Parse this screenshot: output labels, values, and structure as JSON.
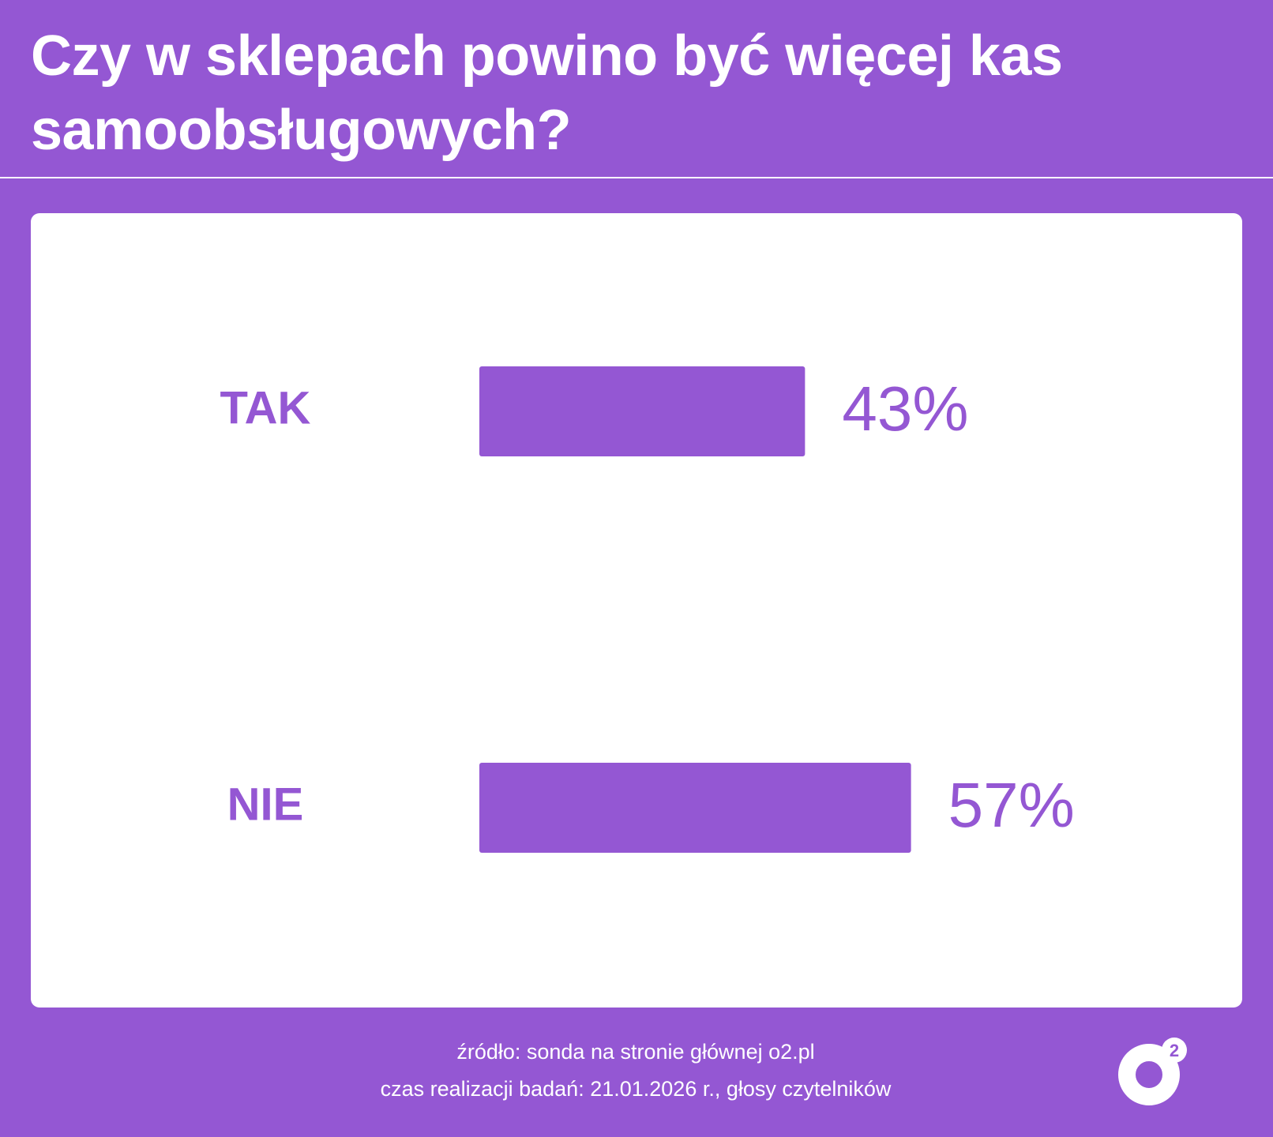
{
  "chart_data": {
    "type": "bar",
    "orientation": "horizontal",
    "title": "Czy w sklepach powino być więcej kas samoobsługowych?",
    "categories": [
      "TAK",
      "NIE"
    ],
    "values": [
      43,
      57
    ],
    "value_labels": [
      "43%",
      "57%"
    ],
    "color": "#9457d3",
    "source": "źródło: sonda na stronie głównej o2.pl",
    "note": "czas realizacji badań: 21.01.2026 r., głosy czytelników"
  },
  "logo": {
    "superscript": "2"
  }
}
